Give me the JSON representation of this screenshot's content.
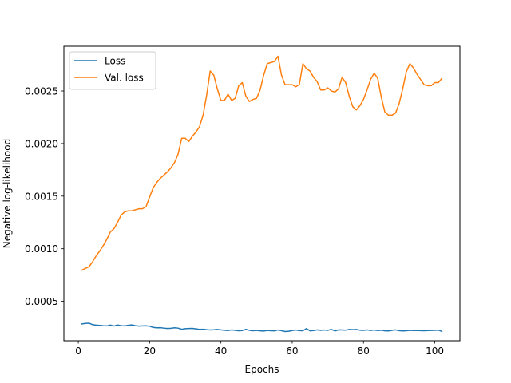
{
  "chart_data": {
    "type": "line",
    "title": "",
    "xlabel": "Epochs",
    "ylabel": "Negative log-likelihood",
    "xlim": [
      -4.05,
      107.05
    ],
    "ylim": [
      0.000125,
      0.002925
    ],
    "xticks": [
      0,
      20,
      40,
      60,
      80,
      100
    ],
    "xtick_labels": [
      "0",
      "20",
      "40",
      "60",
      "80",
      "100"
    ],
    "yticks": [
      0.0005,
      0.001,
      0.0015,
      0.002,
      0.0025
    ],
    "ytick_labels": [
      "0.0005",
      "0.0010",
      "0.0015",
      "0.0020",
      "0.0025"
    ],
    "grid": false,
    "legend_placement": "upper-left",
    "series": [
      {
        "name": "Loss",
        "color": "#1f77b4",
        "x": [
          1,
          2,
          3,
          4,
          5,
          6,
          7,
          8,
          9,
          10,
          11,
          12,
          13,
          14,
          15,
          16,
          17,
          18,
          19,
          20,
          21,
          22,
          23,
          24,
          25,
          26,
          27,
          28,
          29,
          30,
          31,
          32,
          33,
          34,
          35,
          36,
          37,
          38,
          39,
          40,
          41,
          42,
          43,
          44,
          45,
          46,
          47,
          48,
          49,
          50,
          51,
          52,
          53,
          54,
          55,
          56,
          57,
          58,
          59,
          60,
          61,
          62,
          63,
          64,
          65,
          66,
          67,
          68,
          69,
          70,
          71,
          72,
          73,
          74,
          75,
          76,
          77,
          78,
          79,
          80,
          81,
          82,
          83,
          84,
          85,
          86,
          87,
          88,
          89,
          90,
          91,
          92,
          93,
          94,
          95,
          96,
          97,
          98,
          99,
          100,
          101,
          102
        ],
        "y": [
          0.000285,
          0.00029,
          0.000292,
          0.000278,
          0.000274,
          0.000271,
          0.000268,
          0.000266,
          0.000274,
          0.000265,
          0.000275,
          0.000268,
          0.000266,
          0.000272,
          0.000276,
          0.000268,
          0.000264,
          0.000266,
          0.000267,
          0.000263,
          0.000252,
          0.000248,
          0.000249,
          0.000245,
          0.000242,
          0.000244,
          0.000248,
          0.000245,
          0.000234,
          0.00024,
          0.000242,
          0.000243,
          0.000238,
          0.000233,
          0.000234,
          0.00023,
          0.000227,
          0.000229,
          0.000232,
          0.000228,
          0.000225,
          0.000222,
          0.000228,
          0.000224,
          0.00022,
          0.000222,
          0.000233,
          0.000224,
          0.00022,
          0.000224,
          0.000219,
          0.000217,
          0.000223,
          0.00022,
          0.000219,
          0.000227,
          0.000221,
          0.000212,
          0.000215,
          0.000222,
          0.000227,
          0.000221,
          0.00022,
          0.000241,
          0.000219,
          0.000222,
          0.000228,
          0.000224,
          0.000227,
          0.000224,
          0.000233,
          0.000218,
          0.000228,
          0.000227,
          0.000226,
          0.000232,
          0.00023,
          0.000232,
          0.000225,
          0.000224,
          0.000228,
          0.000223,
          0.000227,
          0.000222,
          0.000225,
          0.000219,
          0.000218,
          0.000224,
          0.000228,
          0.000221,
          0.000218,
          0.00022,
          0.000224,
          0.000222,
          0.000223,
          0.000221,
          0.00022,
          0.000222,
          0.000223,
          0.000224,
          0.000226,
          0.000214
        ]
      },
      {
        "name": "Val. loss",
        "color": "#ff7f0e",
        "x": [
          1,
          2,
          3,
          4,
          5,
          6,
          7,
          8,
          9,
          10,
          11,
          12,
          13,
          14,
          15,
          16,
          17,
          18,
          19,
          20,
          21,
          22,
          23,
          24,
          25,
          26,
          27,
          28,
          29,
          30,
          31,
          32,
          33,
          34,
          35,
          36,
          37,
          38,
          39,
          40,
          41,
          42,
          43,
          44,
          45,
          46,
          47,
          48,
          49,
          50,
          51,
          52,
          53,
          54,
          55,
          56,
          57,
          58,
          59,
          60,
          61,
          62,
          63,
          64,
          65,
          66,
          67,
          68,
          69,
          70,
          71,
          72,
          73,
          74,
          75,
          76,
          77,
          78,
          79,
          80,
          81,
          82,
          83,
          84,
          85,
          86,
          87,
          88,
          89,
          90,
          91,
          92,
          93,
          94,
          95,
          96,
          97,
          98,
          99,
          100,
          101,
          102
        ],
        "y": [
          0.000797,
          0.000813,
          0.000828,
          0.000876,
          0.000932,
          0.000978,
          0.00103,
          0.00109,
          0.00116,
          0.00119,
          0.00125,
          0.00132,
          0.00135,
          0.00136,
          0.00136,
          0.00137,
          0.00138,
          0.00138,
          0.0014,
          0.00149,
          0.00158,
          0.00163,
          0.00167,
          0.0017,
          0.00173,
          0.00177,
          0.00182,
          0.0019,
          0.00205,
          0.00205,
          0.00202,
          0.00207,
          0.00211,
          0.00216,
          0.00227,
          0.00246,
          0.00269,
          0.00265,
          0.00252,
          0.00241,
          0.00241,
          0.00247,
          0.00241,
          0.00243,
          0.00255,
          0.00258,
          0.00245,
          0.0024,
          0.00242,
          0.00243,
          0.00251,
          0.00265,
          0.00276,
          0.00277,
          0.00278,
          0.00283,
          0.00265,
          0.00256,
          0.00256,
          0.00256,
          0.00254,
          0.00256,
          0.00276,
          0.00271,
          0.00269,
          0.00263,
          0.00259,
          0.00251,
          0.00251,
          0.00253,
          0.0025,
          0.00249,
          0.00252,
          0.00263,
          0.00258,
          0.00245,
          0.00235,
          0.00232,
          0.00236,
          0.00242,
          0.00251,
          0.00261,
          0.00267,
          0.00262,
          0.00244,
          0.0023,
          0.00227,
          0.00227,
          0.00229,
          0.00238,
          0.00252,
          0.00268,
          0.00276,
          0.00272,
          0.00266,
          0.00261,
          0.00256,
          0.00255,
          0.00255,
          0.00258,
          0.00258,
          0.00262
        ]
      }
    ]
  }
}
